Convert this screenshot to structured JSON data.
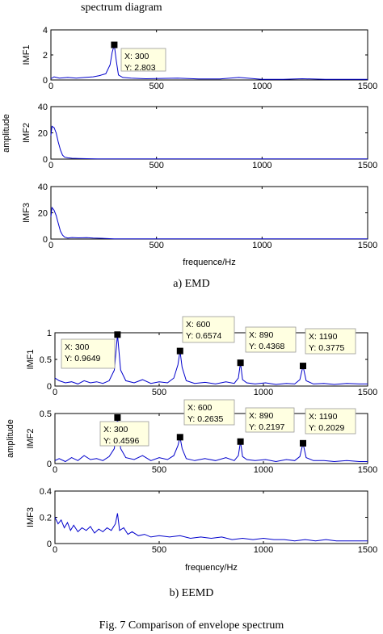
{
  "header_text": "spectrum diagram",
  "caption_a": "a) EMD",
  "caption_b": "b) EEMD",
  "figure_caption": "Fig. 7   Comparison of envelope spectrum",
  "chart_data": [
    {
      "type": "line",
      "group": "a) EMD",
      "shared_ylabel": "amplitude",
      "xlabel": "frequence/Hz",
      "panels": [
        {
          "ylabel": "IMF1",
          "xlim": [
            0,
            1500
          ],
          "ylim": [
            0,
            4
          ],
          "yticks": [
            0,
            2,
            4
          ],
          "xticks": [
            0,
            500,
            1000,
            1500
          ],
          "x": [
            0,
            15,
            40,
            80,
            120,
            160,
            200,
            230,
            260,
            280,
            290,
            300,
            310,
            320,
            340,
            380,
            450,
            520,
            600,
            700,
            800,
            890,
            1000,
            1100,
            1190,
            1300,
            1400,
            1500
          ],
          "y": [
            0.1,
            0.25,
            0.15,
            0.2,
            0.15,
            0.2,
            0.25,
            0.35,
            0.5,
            1.2,
            2.2,
            2.803,
            1.5,
            0.4,
            0.2,
            0.15,
            0.1,
            0.12,
            0.15,
            0.08,
            0.08,
            0.2,
            0.05,
            0.05,
            0.1,
            0.05,
            0.05,
            0.05
          ],
          "datatips": [
            {
              "x": 300,
              "y": 2.803,
              "label_x": "X: 300",
              "label_y": "Y: 2.803"
            }
          ]
        },
        {
          "ylabel": "IMF2",
          "xlim": [
            0,
            1500
          ],
          "ylim": [
            0,
            40
          ],
          "yticks": [
            0,
            20,
            40
          ],
          "xticks": [
            0,
            500,
            1000,
            1500
          ],
          "x": [
            0,
            5,
            15,
            25,
            35,
            45,
            55,
            65,
            80,
            100,
            130,
            170,
            220,
            300,
            500,
            800,
            1100,
            1500
          ],
          "y": [
            18,
            25,
            24,
            20,
            13,
            7,
            3,
            1.5,
            1,
            0.6,
            0.4,
            0.3,
            0.2,
            0.15,
            0.1,
            0.1,
            0.1,
            0.1
          ],
          "datatips": []
        },
        {
          "ylabel": "IMF3",
          "xlim": [
            0,
            1500
          ],
          "ylim": [
            0,
            40
          ],
          "yticks": [
            0,
            20,
            40
          ],
          "xticks": [
            0,
            500,
            1000,
            1500
          ],
          "x": [
            0,
            5,
            15,
            25,
            35,
            45,
            55,
            65,
            80,
            100,
            130,
            170,
            200,
            300,
            500,
            800,
            1100,
            1500
          ],
          "y": [
            17,
            24,
            22,
            18,
            12,
            6,
            3,
            1.5,
            0.8,
            1.2,
            0.9,
            1.1,
            0.8,
            0.2,
            0.1,
            0.1,
            0.1,
            0.1
          ],
          "datatips": []
        }
      ]
    },
    {
      "type": "line",
      "group": "b) EEMD",
      "shared_ylabel": "amplitude",
      "xlabel": "frequency/Hz",
      "panels": [
        {
          "ylabel": "IMF1",
          "xlim": [
            0,
            1500
          ],
          "ylim": [
            0,
            1.0
          ],
          "yticks": [
            0,
            0.5,
            1
          ],
          "xticks": [
            0,
            500,
            1000,
            1500
          ],
          "x": [
            0,
            20,
            50,
            80,
            110,
            140,
            170,
            200,
            230,
            260,
            285,
            300,
            315,
            340,
            380,
            420,
            460,
            500,
            540,
            570,
            590,
            600,
            610,
            630,
            670,
            720,
            770,
            820,
            860,
            880,
            890,
            900,
            920,
            960,
            1010,
            1060,
            1110,
            1150,
            1175,
            1190,
            1205,
            1240,
            1290,
            1340,
            1400,
            1460,
            1500
          ],
          "y": [
            0.15,
            0.1,
            0.06,
            0.08,
            0.04,
            0.1,
            0.06,
            0.08,
            0.05,
            0.1,
            0.3,
            0.9649,
            0.3,
            0.1,
            0.06,
            0.12,
            0.05,
            0.08,
            0.06,
            0.15,
            0.4,
            0.6574,
            0.35,
            0.1,
            0.05,
            0.07,
            0.04,
            0.08,
            0.05,
            0.15,
            0.4368,
            0.12,
            0.06,
            0.04,
            0.06,
            0.03,
            0.05,
            0.04,
            0.12,
            0.3775,
            0.1,
            0.04,
            0.05,
            0.03,
            0.05,
            0.04,
            0.04
          ],
          "datatips": [
            {
              "x": 300,
              "y": 0.9649,
              "label_x": "X: 300",
              "label_y": "Y: 0.9649"
            },
            {
              "x": 600,
              "y": 0.6574,
              "label_x": "X: 600",
              "label_y": "Y: 0.6574"
            },
            {
              "x": 890,
              "y": 0.4368,
              "label_x": "X: 890",
              "label_y": "Y: 0.4368"
            },
            {
              "x": 1190,
              "y": 0.3775,
              "label_x": "X: 1190",
              "label_y": "Y: 0.3775"
            }
          ]
        },
        {
          "ylabel": "IMF2",
          "xlim": [
            0,
            1500
          ],
          "ylim": [
            0,
            0.5
          ],
          "yticks": [
            0,
            0.5
          ],
          "xticks": [
            0,
            500,
            1000,
            1500
          ],
          "x": [
            0,
            20,
            50,
            80,
            110,
            140,
            170,
            200,
            230,
            260,
            285,
            300,
            315,
            340,
            380,
            420,
            460,
            500,
            540,
            570,
            590,
            600,
            610,
            630,
            670,
            720,
            770,
            820,
            860,
            880,
            890,
            900,
            920,
            960,
            1010,
            1060,
            1110,
            1150,
            1175,
            1190,
            1205,
            1240,
            1290,
            1340,
            1400,
            1460,
            1500
          ],
          "y": [
            0.03,
            0.05,
            0.02,
            0.06,
            0.03,
            0.08,
            0.04,
            0.05,
            0.03,
            0.07,
            0.15,
            0.4596,
            0.15,
            0.06,
            0.04,
            0.08,
            0.03,
            0.06,
            0.04,
            0.08,
            0.18,
            0.2635,
            0.15,
            0.05,
            0.03,
            0.05,
            0.03,
            0.06,
            0.03,
            0.08,
            0.2197,
            0.07,
            0.04,
            0.03,
            0.04,
            0.02,
            0.04,
            0.03,
            0.07,
            0.2029,
            0.06,
            0.03,
            0.03,
            0.02,
            0.03,
            0.02,
            0.02
          ],
          "datatips": [
            {
              "x": 300,
              "y": 0.4596,
              "label_x": "X: 300",
              "label_y": "Y: 0.4596"
            },
            {
              "x": 600,
              "y": 0.2635,
              "label_x": "X: 600",
              "label_y": "Y: 0.2635"
            },
            {
              "x": 890,
              "y": 0.2197,
              "label_x": "X: 890",
              "label_y": "Y: 0.2197"
            },
            {
              "x": 1190,
              "y": 0.2029,
              "label_x": "X: 1190",
              "label_y": "Y: 0.2029"
            }
          ]
        },
        {
          "ylabel": "IMF3",
          "xlim": [
            0,
            1500
          ],
          "ylim": [
            0,
            0.4
          ],
          "yticks": [
            0,
            0.2,
            0.4
          ],
          "xticks": [
            0,
            500,
            1000,
            1500
          ],
          "x": [
            0,
            15,
            30,
            45,
            60,
            75,
            90,
            110,
            130,
            150,
            170,
            190,
            210,
            230,
            250,
            270,
            290,
            300,
            310,
            330,
            350,
            370,
            400,
            430,
            460,
            500,
            550,
            600,
            650,
            700,
            750,
            800,
            850,
            900,
            950,
            1000,
            1050,
            1100,
            1150,
            1200,
            1250,
            1300,
            1350,
            1400,
            1450,
            1500
          ],
          "y": [
            0.2,
            0.15,
            0.18,
            0.12,
            0.16,
            0.1,
            0.14,
            0.09,
            0.12,
            0.1,
            0.13,
            0.08,
            0.11,
            0.09,
            0.12,
            0.1,
            0.15,
            0.23,
            0.1,
            0.12,
            0.07,
            0.09,
            0.06,
            0.07,
            0.05,
            0.06,
            0.05,
            0.06,
            0.04,
            0.05,
            0.04,
            0.05,
            0.03,
            0.04,
            0.03,
            0.04,
            0.03,
            0.03,
            0.02,
            0.03,
            0.02,
            0.03,
            0.02,
            0.02,
            0.02,
            0.02
          ],
          "datatips": []
        }
      ]
    }
  ]
}
